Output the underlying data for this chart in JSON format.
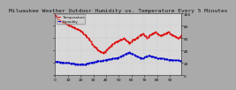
{
  "title": "Milwaukee Weather Outdoor Humidity vs. Temperature Every 5 Minutes",
  "red_y": [
    98,
    95,
    92,
    90,
    88,
    87,
    86,
    85,
    84,
    83,
    82,
    81,
    80,
    79,
    78,
    77,
    76,
    75,
    74,
    73,
    72,
    70,
    68,
    66,
    64,
    62,
    60,
    57,
    54,
    51,
    48,
    46,
    44,
    42,
    40,
    39,
    38,
    37,
    36,
    38,
    40,
    42,
    44,
    46,
    48,
    50,
    52,
    53,
    54,
    55,
    56,
    57,
    58,
    59,
    60,
    58,
    56,
    54,
    52,
    53,
    55,
    57,
    58,
    59,
    60,
    62,
    64,
    65,
    66,
    67,
    65,
    63,
    61,
    62,
    64,
    66,
    67,
    68,
    69,
    70,
    68,
    66,
    65,
    64,
    65,
    66,
    67,
    68,
    69,
    70,
    68,
    66,
    65,
    64,
    63,
    62,
    61,
    60,
    62,
    64
  ],
  "blue_y": [
    22,
    22,
    22,
    22,
    21,
    21,
    21,
    21,
    20,
    20,
    20,
    20,
    19,
    19,
    19,
    19,
    18,
    18,
    18,
    18,
    18,
    18,
    18,
    18,
    18,
    19,
    19,
    20,
    20,
    21,
    21,
    22,
    22,
    23,
    23,
    23,
    23,
    23,
    24,
    24,
    25,
    25,
    26,
    26,
    26,
    27,
    27,
    27,
    28,
    28,
    29,
    30,
    31,
    32,
    33,
    34,
    35,
    36,
    37,
    36,
    35,
    34,
    33,
    32,
    31,
    30,
    29,
    28,
    28,
    28,
    29,
    30,
    31,
    32,
    32,
    31,
    30,
    30,
    29,
    29,
    28,
    28,
    27,
    27,
    27,
    27,
    26,
    26,
    26,
    25,
    25,
    25,
    25,
    24,
    24,
    24,
    24,
    24,
    23,
    23
  ],
  "red_color": "#dd0000",
  "blue_color": "#0000cc",
  "bg_color": "#aaaaaa",
  "plot_bg_color": "#d8d8d8",
  "grid_color": "#bbbbbb",
  "ylim": [
    0,
    100
  ],
  "xlim": [
    0,
    99
  ],
  "n_points": 100,
  "title_fontsize": 4.5,
  "tick_fontsize": 3.2,
  "marker_size": 1.5,
  "linewidth": 0.8,
  "legend_labels": [
    "Temperature",
    "Humidity"
  ],
  "right_yticks": [
    0,
    20,
    40,
    60,
    80,
    100
  ],
  "right_yticklabels": [
    "0",
    "20",
    "40",
    "60",
    "80",
    "100"
  ]
}
